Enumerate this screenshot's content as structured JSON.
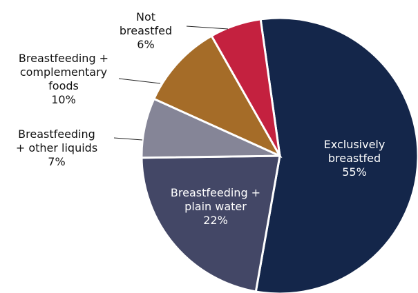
{
  "chart_data": {
    "type": "pie",
    "categories": [
      "Exclusively\nbreastfed",
      "Breastfeeding +\nplain water",
      "Breastfeeding\n+ other liquids",
      "Breastfeeding +\ncomplementary\nfoods",
      "Not\nbreastfed"
    ],
    "values": [
      55,
      22,
      7,
      10,
      6
    ],
    "value_labels": [
      "55%",
      "22%",
      "7%",
      "10%",
      "6%"
    ],
    "colors": [
      "#14264a",
      "#434766",
      "#858597",
      "#a56c28",
      "#c4213f"
    ]
  }
}
